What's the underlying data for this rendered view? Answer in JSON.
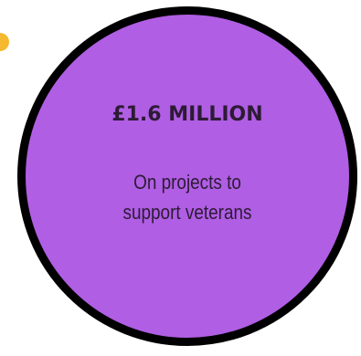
{
  "stat_card": {
    "figure": "£1.6 MILLION",
    "description_lines": [
      "On projects to",
      "support veterans"
    ]
  },
  "colors": {
    "circle_fill": "#b05ee4",
    "circle_border": "#000000",
    "accent_dot": "#f5b82e",
    "text": "#2d1b35"
  }
}
